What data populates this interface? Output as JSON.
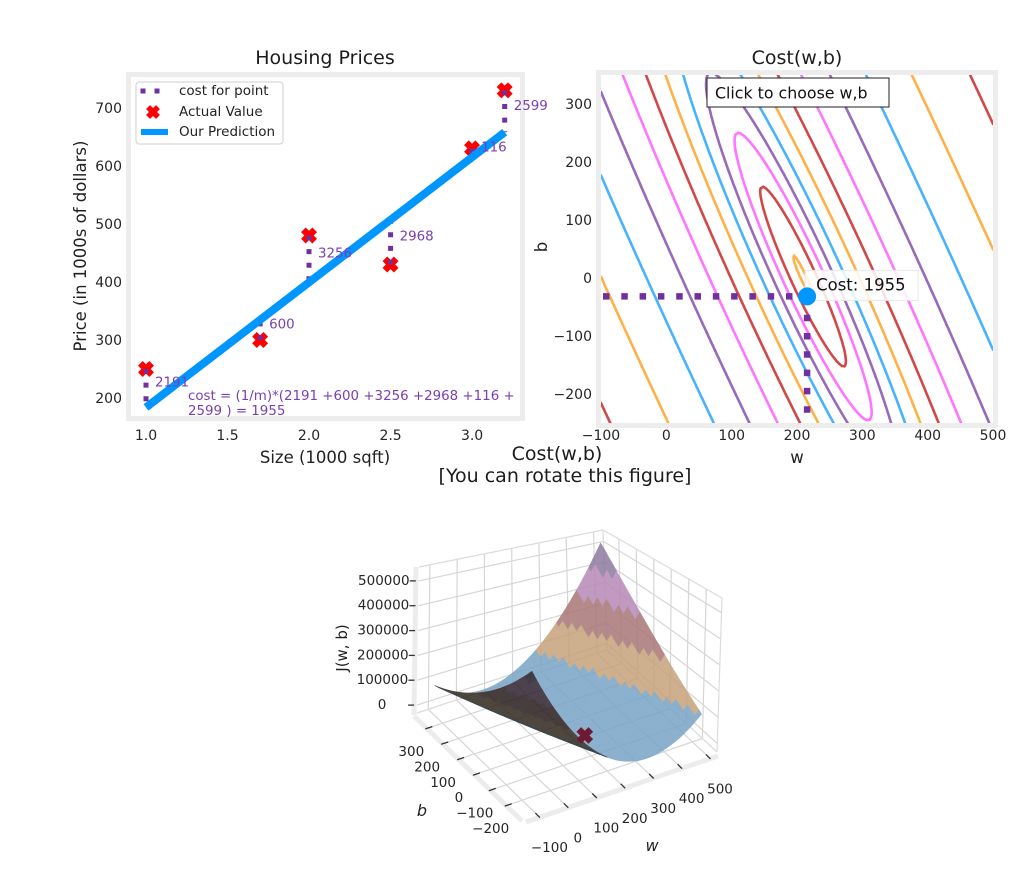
{
  "figure": {
    "background": "#ffffff"
  },
  "chart_data": [
    {
      "type": "scatter",
      "title": "Housing Prices",
      "xlabel": "Size (1000 sqft)",
      "ylabel": "Price (in 1000s of dollars)",
      "xlim": [
        0.908,
        3.294
      ],
      "ylim": [
        169,
        753
      ],
      "grid": false,
      "xticks": [
        1.0,
        1.5,
        2.0,
        2.5,
        3.0
      ],
      "xtick_labels": [
        "1.0",
        "1.5",
        "2.0",
        "2.5",
        "3.0"
      ],
      "yticks": [
        200,
        300,
        400,
        500,
        600,
        700
      ],
      "ytick_labels": [
        "200",
        "300",
        "400",
        "500",
        "600",
        "700"
      ],
      "points": {
        "x": [
          1.0,
          1.7,
          2.0,
          2.5,
          3.0,
          3.2
        ],
        "y": [
          250,
          300,
          480,
          430,
          630,
          730
        ]
      },
      "prediction": {
        "w": 215.5,
        "b": -31.7,
        "x_start": 1.0,
        "x_end": 3.2
      },
      "point_cost_labels": [
        "2191",
        "600",
        "3256",
        "2968",
        "116",
        "2599"
      ],
      "cost_annotation": {
        "line1": "cost = (1/m)*(2191 +600 +3256 +2968 +116 +",
        "line2": "2599 ) = 1955"
      },
      "legend": {
        "position": "upper-left",
        "entries": [
          {
            "label": "cost for point",
            "marker": "dotted-line"
          },
          {
            "label": "Actual Value",
            "marker": "x"
          },
          {
            "label": "Our Prediction",
            "marker": "line"
          }
        ]
      },
      "colors": {
        "cost_line": "#7030A0",
        "actual": "#ff0000",
        "prediction": "#0096ff",
        "legend_border": "#cfcfcf"
      }
    },
    {
      "type": "contour",
      "title": "Cost(w,b)",
      "xlabel": "w",
      "ylabel": "b",
      "xlim": [
        -100,
        500
      ],
      "ylim": [
        -250,
        350
      ],
      "xticks": [
        -100,
        0,
        100,
        200,
        300,
        400,
        500
      ],
      "xtick_labels": [
        "−100",
        "0",
        "100",
        "200",
        "300",
        "400",
        "500"
      ],
      "yticks": [
        -200,
        -100,
        0,
        100,
        200,
        300
      ],
      "ytick_labels": [
        "−200",
        "−100",
        "0",
        "100",
        "200",
        "300"
      ],
      "z_quantity": "log(cost)",
      "levels": [
        7.0,
        7.5,
        8.0,
        8.5,
        9.0,
        9.5,
        10.0,
        10.5,
        11.0,
        11.5,
        12.0,
        12.5,
        13.0,
        13.5
      ],
      "level_colors": [
        "#0096ff",
        "#FF9300",
        "#C00000",
        "#FF40FF",
        "#7030A0"
      ],
      "selected": {
        "w": 215.5,
        "b": -31.7,
        "cost": 1955
      },
      "cost_label": "Cost: 1955",
      "instruction": "Click to choose w,b",
      "colors": {
        "point": "#0096ff",
        "guide": "#7030A0"
      }
    },
    {
      "type": "surface3d",
      "title": "Cost(w,b)",
      "subtitle": "[You can rotate this figure]",
      "xlabel": "w",
      "ylabel": "b",
      "zlabel": "J(w, b)",
      "w_range": [
        -100,
        500
      ],
      "b_range": [
        -250,
        350
      ],
      "xlim": [
        -140,
        535
      ],
      "ylim": [
        -290,
        390
      ],
      "zlim": [
        -32000,
        556000
      ],
      "xticks": [
        -100,
        0,
        100,
        200,
        300,
        400,
        500
      ],
      "xtick_labels": [
        "−100",
        "0",
        "100",
        "200",
        "300",
        "400",
        "500"
      ],
      "yticks": [
        -200,
        -100,
        0,
        100,
        200,
        300
      ],
      "ytick_labels": [
        "−200",
        "−100",
        "0",
        "100",
        "200",
        "300"
      ],
      "zticks": [
        0,
        100000,
        200000,
        300000,
        400000,
        500000
      ],
      "ztick_labels": [
        "0",
        "100000",
        "200000",
        "300000",
        "400000",
        "500000"
      ],
      "band_colors": [
        "#7aa5c6",
        "#c6a27c",
        "#a97879",
        "#b88ab8",
        "#8f7ca0"
      ],
      "marker": {
        "w": 215.5,
        "b": -31.7,
        "cost": 1955,
        "color": "#6e1a33"
      }
    }
  ]
}
